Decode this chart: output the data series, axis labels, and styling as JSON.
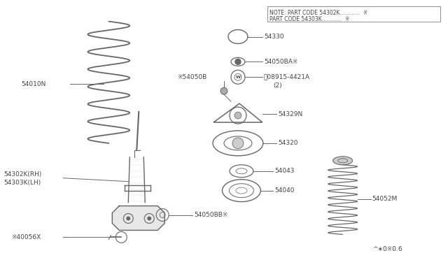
{
  "bg_color": "#ffffff",
  "line_color": "#666666",
  "text_color": "#444444",
  "note_line1": "NOTE: PART CODE 54302K............  ※",
  "note_line2": "PART CODE 54303K............  ※",
  "footer": "^∗0※0.6"
}
